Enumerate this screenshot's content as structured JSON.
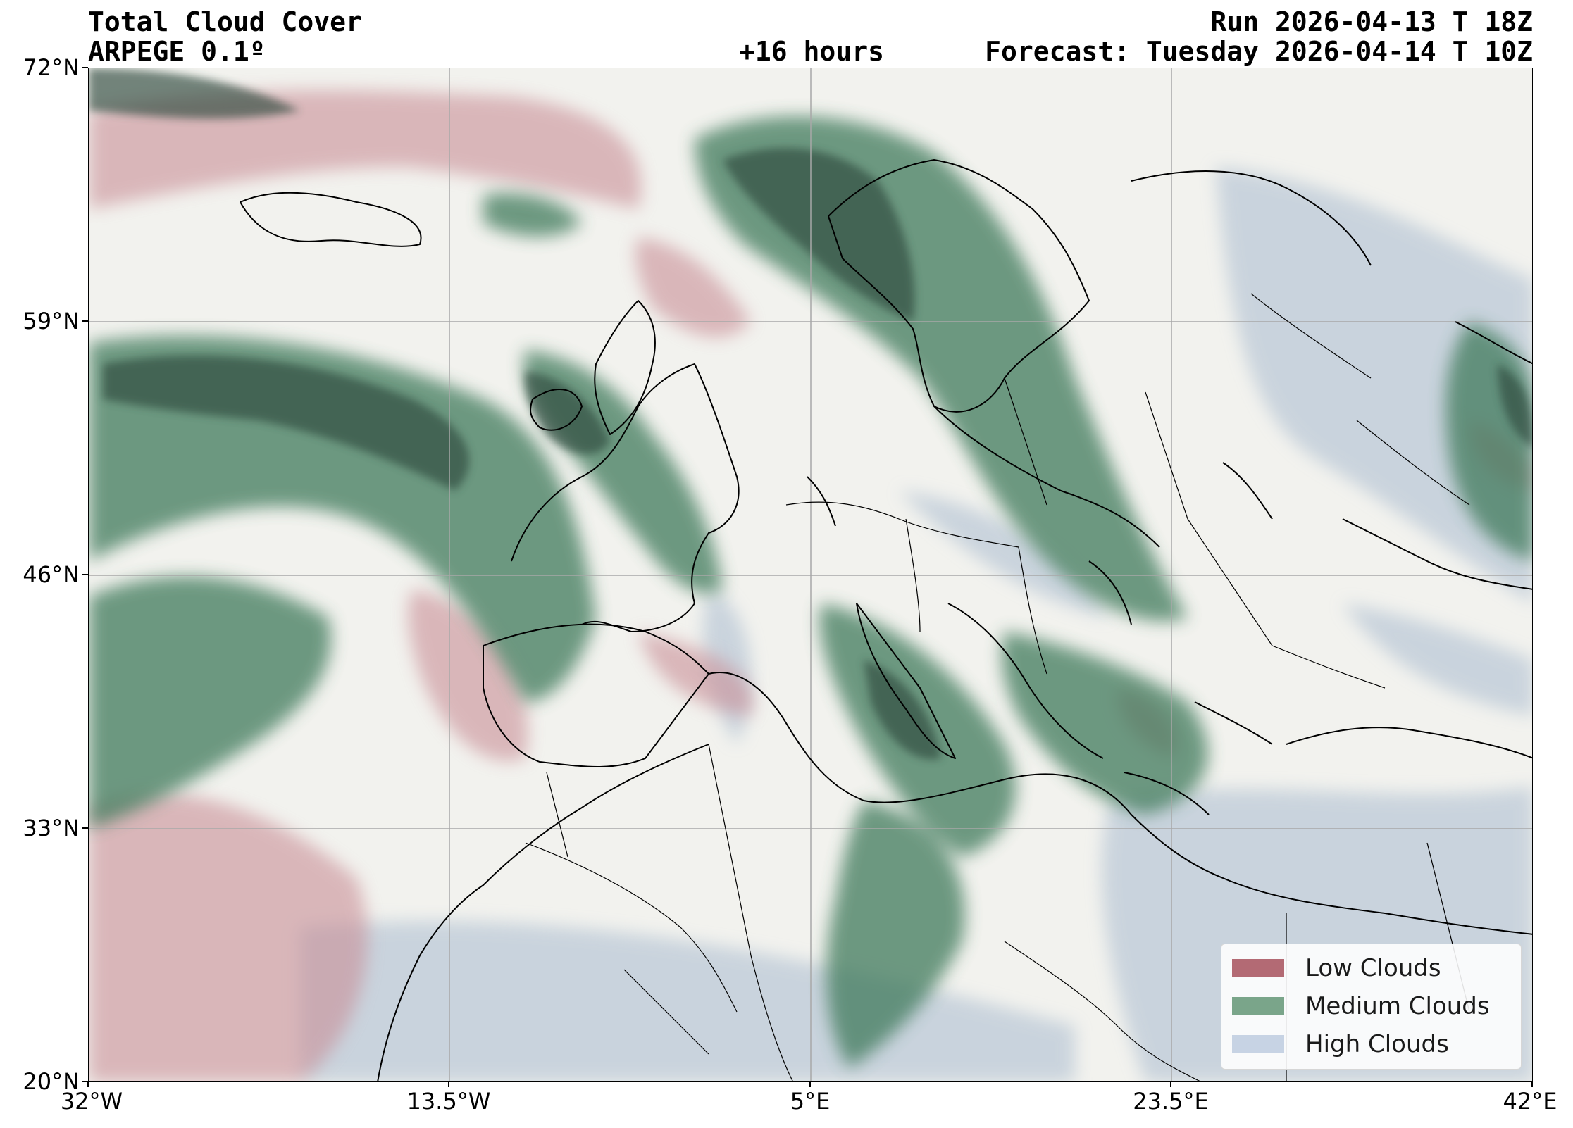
{
  "header": {
    "title": "Total Cloud Cover",
    "model": "ARPEGE 0.1º",
    "lead_time": "+16 hours",
    "run": "Run 2026-04-13 T 18Z",
    "forecast": "Forecast: Tuesday 2026-04-14 T 10Z"
  },
  "axes": {
    "lat_ticks": [
      "72°N",
      "59°N",
      "46°N",
      "33°N",
      "20°N"
    ],
    "lon_ticks": [
      "32°W",
      "13.5°W",
      "5°E",
      "23.5°E",
      "42°E"
    ],
    "lat_range": [
      20,
      72
    ],
    "lon_range": [
      -32,
      42
    ],
    "grid": true
  },
  "legend": {
    "placement": "bottom-right",
    "items": [
      {
        "label": "Low Clouds",
        "color": "#b36a74"
      },
      {
        "label": "Medium Clouds",
        "color": "#7aa58a"
      },
      {
        "label": "High Clouds",
        "color": "#c7d3e4"
      }
    ]
  },
  "colors": {
    "background": "#f2f2ee",
    "low": "#c98f97",
    "medium": "#3f7a5c",
    "medium_dark": "#2e4a3e",
    "high": "#b9c7d6",
    "coast": "#000000",
    "grid": "#a8a8a8"
  }
}
